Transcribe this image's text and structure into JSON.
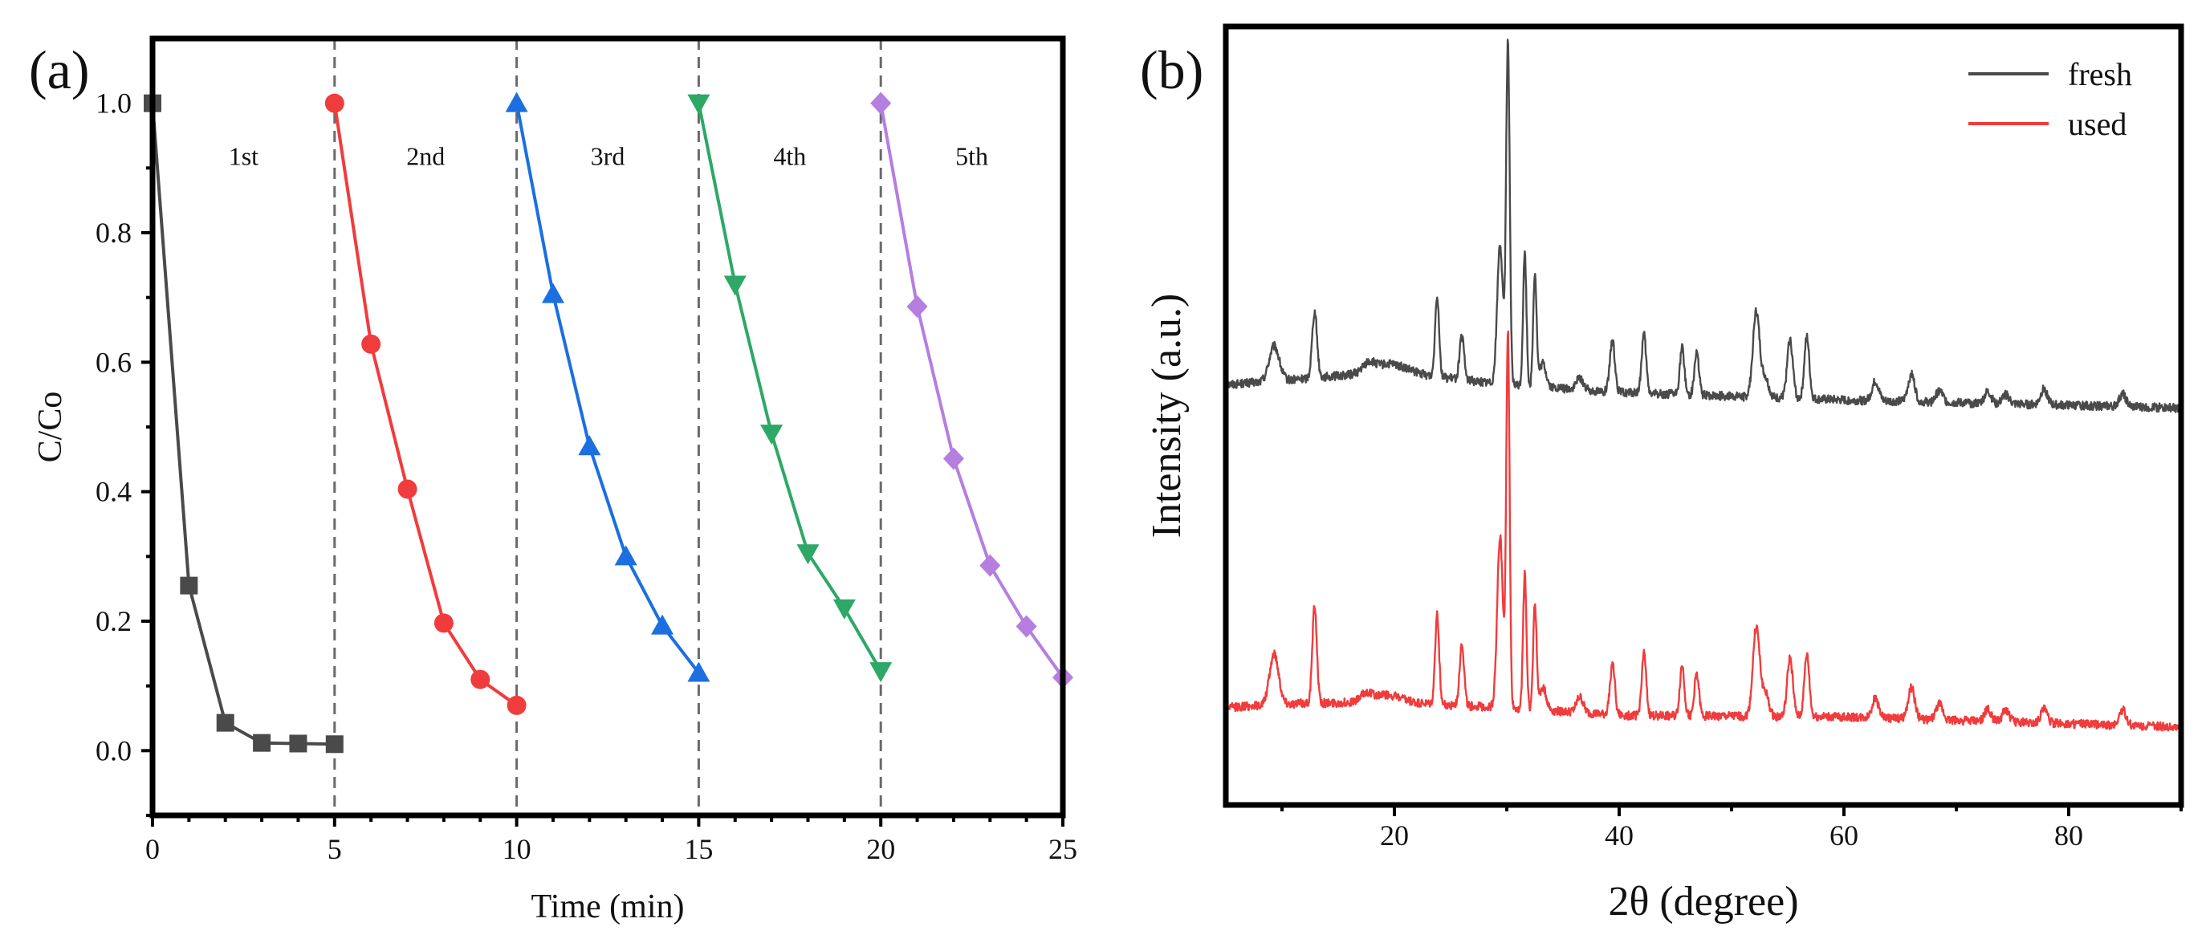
{
  "figure": {
    "panel_a_letter": "(a)",
    "panel_b_letter": "(b)"
  },
  "chart_data": [
    {
      "type": "line",
      "panel": "(a)",
      "xlabel": "Time (min)",
      "ylabel": "C/Co",
      "xlim": [
        0,
        25
      ],
      "ylim": [
        -0.1,
        1.1
      ],
      "xticks": [
        0,
        5,
        10,
        15,
        20,
        25
      ],
      "yticks": [
        0.0,
        0.2,
        0.4,
        0.6,
        0.8,
        1.0
      ],
      "ytick_labels": [
        "0.0",
        "0.2",
        "0.4",
        "0.6",
        "0.8",
        "1.0"
      ],
      "grid": false,
      "cycle_dividers": [
        5,
        10,
        15,
        20
      ],
      "series": [
        {
          "label": "1st",
          "color": "#4a4a4a",
          "marker": "square",
          "x": [
            0,
            1,
            2,
            3,
            4,
            5
          ],
          "y": [
            1.0,
            0.255,
            0.043,
            0.012,
            0.011,
            0.01
          ]
        },
        {
          "label": "2nd",
          "color": "#f03c3c",
          "marker": "circle",
          "x": [
            5,
            6,
            7,
            8,
            9,
            10
          ],
          "y": [
            1.0,
            0.628,
            0.404,
            0.197,
            0.11,
            0.07
          ]
        },
        {
          "label": "3rd",
          "color": "#1b6fe0",
          "marker": "triangle-up",
          "x": [
            10,
            11,
            12,
            13,
            14,
            15
          ],
          "y": [
            1.0,
            0.705,
            0.47,
            0.3,
            0.193,
            0.12
          ]
        },
        {
          "label": "4th",
          "color": "#2da866",
          "marker": "triangle-down",
          "x": [
            15,
            16,
            17,
            18,
            19,
            20
          ],
          "y": [
            1.0,
            0.72,
            0.49,
            0.305,
            0.22,
            0.123
          ]
        },
        {
          "label": "5th",
          "color": "#b57ee0",
          "marker": "diamond",
          "x": [
            20,
            21,
            22,
            23,
            24,
            25
          ],
          "y": [
            1.0,
            0.686,
            0.451,
            0.286,
            0.192,
            0.113
          ]
        }
      ]
    },
    {
      "type": "line",
      "panel": "(b)",
      "xlabel": "2θ (degree)",
      "ylabel": "Intensity (a.u.)",
      "xlim": [
        5,
        90
      ],
      "xticks": [
        20,
        40,
        60,
        80
      ],
      "ylim": [
        0,
        100
      ],
      "y_tick_labels_shown": false,
      "grid": false,
      "legend_position": "top-right",
      "series": [
        {
          "name": "fresh",
          "color": "#4a4a4a",
          "baseline": [
            [
              5,
              54
            ],
            [
              10,
              54.5
            ],
            [
              18,
              55.5
            ],
            [
              22,
              55.3
            ],
            [
              30,
              54
            ],
            [
              40,
              53
            ],
            [
              60,
              52
            ],
            [
              90,
              51
            ]
          ],
          "noise": 0.55,
          "peaks": [
            [
              9.3,
              4.5,
              0.45
            ],
            [
              12.9,
              8.5,
              0.22
            ],
            [
              17.7,
              1.0,
              0.5
            ],
            [
              19.6,
              1.2,
              1.4
            ],
            [
              23.8,
              10.5,
              0.18
            ],
            [
              26.0,
              5.5,
              0.2
            ],
            [
              29.4,
              18,
              0.25
            ],
            [
              30.1,
              44,
              0.16
            ],
            [
              31.6,
              17,
              0.15
            ],
            [
              32.5,
              14.5,
              0.15
            ],
            [
              33.2,
              3,
              0.3
            ],
            [
              36.5,
              1.5,
              0.3
            ],
            [
              39.4,
              6.5,
              0.22
            ],
            [
              42.2,
              7.5,
              0.2
            ],
            [
              45.6,
              6,
              0.2
            ],
            [
              46.9,
              5.5,
              0.2
            ],
            [
              52.2,
              11,
              0.3
            ],
            [
              53.0,
              2.5,
              0.3
            ],
            [
              55.2,
              7.5,
              0.25
            ],
            [
              56.7,
              8,
              0.22
            ],
            [
              62.8,
              2.5,
              0.3
            ],
            [
              66.0,
              3.5,
              0.3
            ],
            [
              68.5,
              1.5,
              0.3
            ],
            [
              72.8,
              1.5,
              0.3
            ],
            [
              74.4,
              1.2,
              0.3
            ],
            [
              77.8,
              2,
              0.3
            ],
            [
              84.8,
              1.6,
              0.3
            ]
          ]
        },
        {
          "name": "used",
          "color": "#f03c3c",
          "baseline": [
            [
              5,
              12.5
            ],
            [
              10,
              13
            ],
            [
              18,
              13.2
            ],
            [
              22,
              13
            ],
            [
              30,
              12.5
            ],
            [
              40,
              11.5
            ],
            [
              60,
              11.3
            ],
            [
              90,
              10
            ]
          ],
          "noise": 0.55,
          "peaks": [
            [
              9.3,
              6.5,
              0.4
            ],
            [
              12.9,
              12.5,
              0.2
            ],
            [
              17.5,
              1.0,
              0.5
            ],
            [
              19.4,
              1.0,
              1.2
            ],
            [
              23.8,
              11.5,
              0.18
            ],
            [
              26.0,
              8,
              0.2
            ],
            [
              29.4,
              22,
              0.25
            ],
            [
              30.1,
              48,
              0.15
            ],
            [
              31.6,
              17.5,
              0.15
            ],
            [
              32.5,
              13.5,
              0.15
            ],
            [
              33.2,
              3,
              0.3
            ],
            [
              36.5,
              2,
              0.3
            ],
            [
              39.4,
              6.5,
              0.22
            ],
            [
              42.2,
              8,
              0.2
            ],
            [
              45.6,
              6.5,
              0.2
            ],
            [
              46.9,
              5.5,
              0.2
            ],
            [
              52.2,
              11.5,
              0.3
            ],
            [
              53.0,
              3,
              0.3
            ],
            [
              55.2,
              7.5,
              0.25
            ],
            [
              56.7,
              8,
              0.22
            ],
            [
              62.8,
              2.5,
              0.3
            ],
            [
              66.0,
              4,
              0.3
            ],
            [
              68.5,
              2,
              0.3
            ],
            [
              72.8,
              1.5,
              0.3
            ],
            [
              74.4,
              1.5,
              0.3
            ],
            [
              77.8,
              1.8,
              0.3
            ],
            [
              84.8,
              2,
              0.3
            ]
          ]
        }
      ]
    }
  ]
}
